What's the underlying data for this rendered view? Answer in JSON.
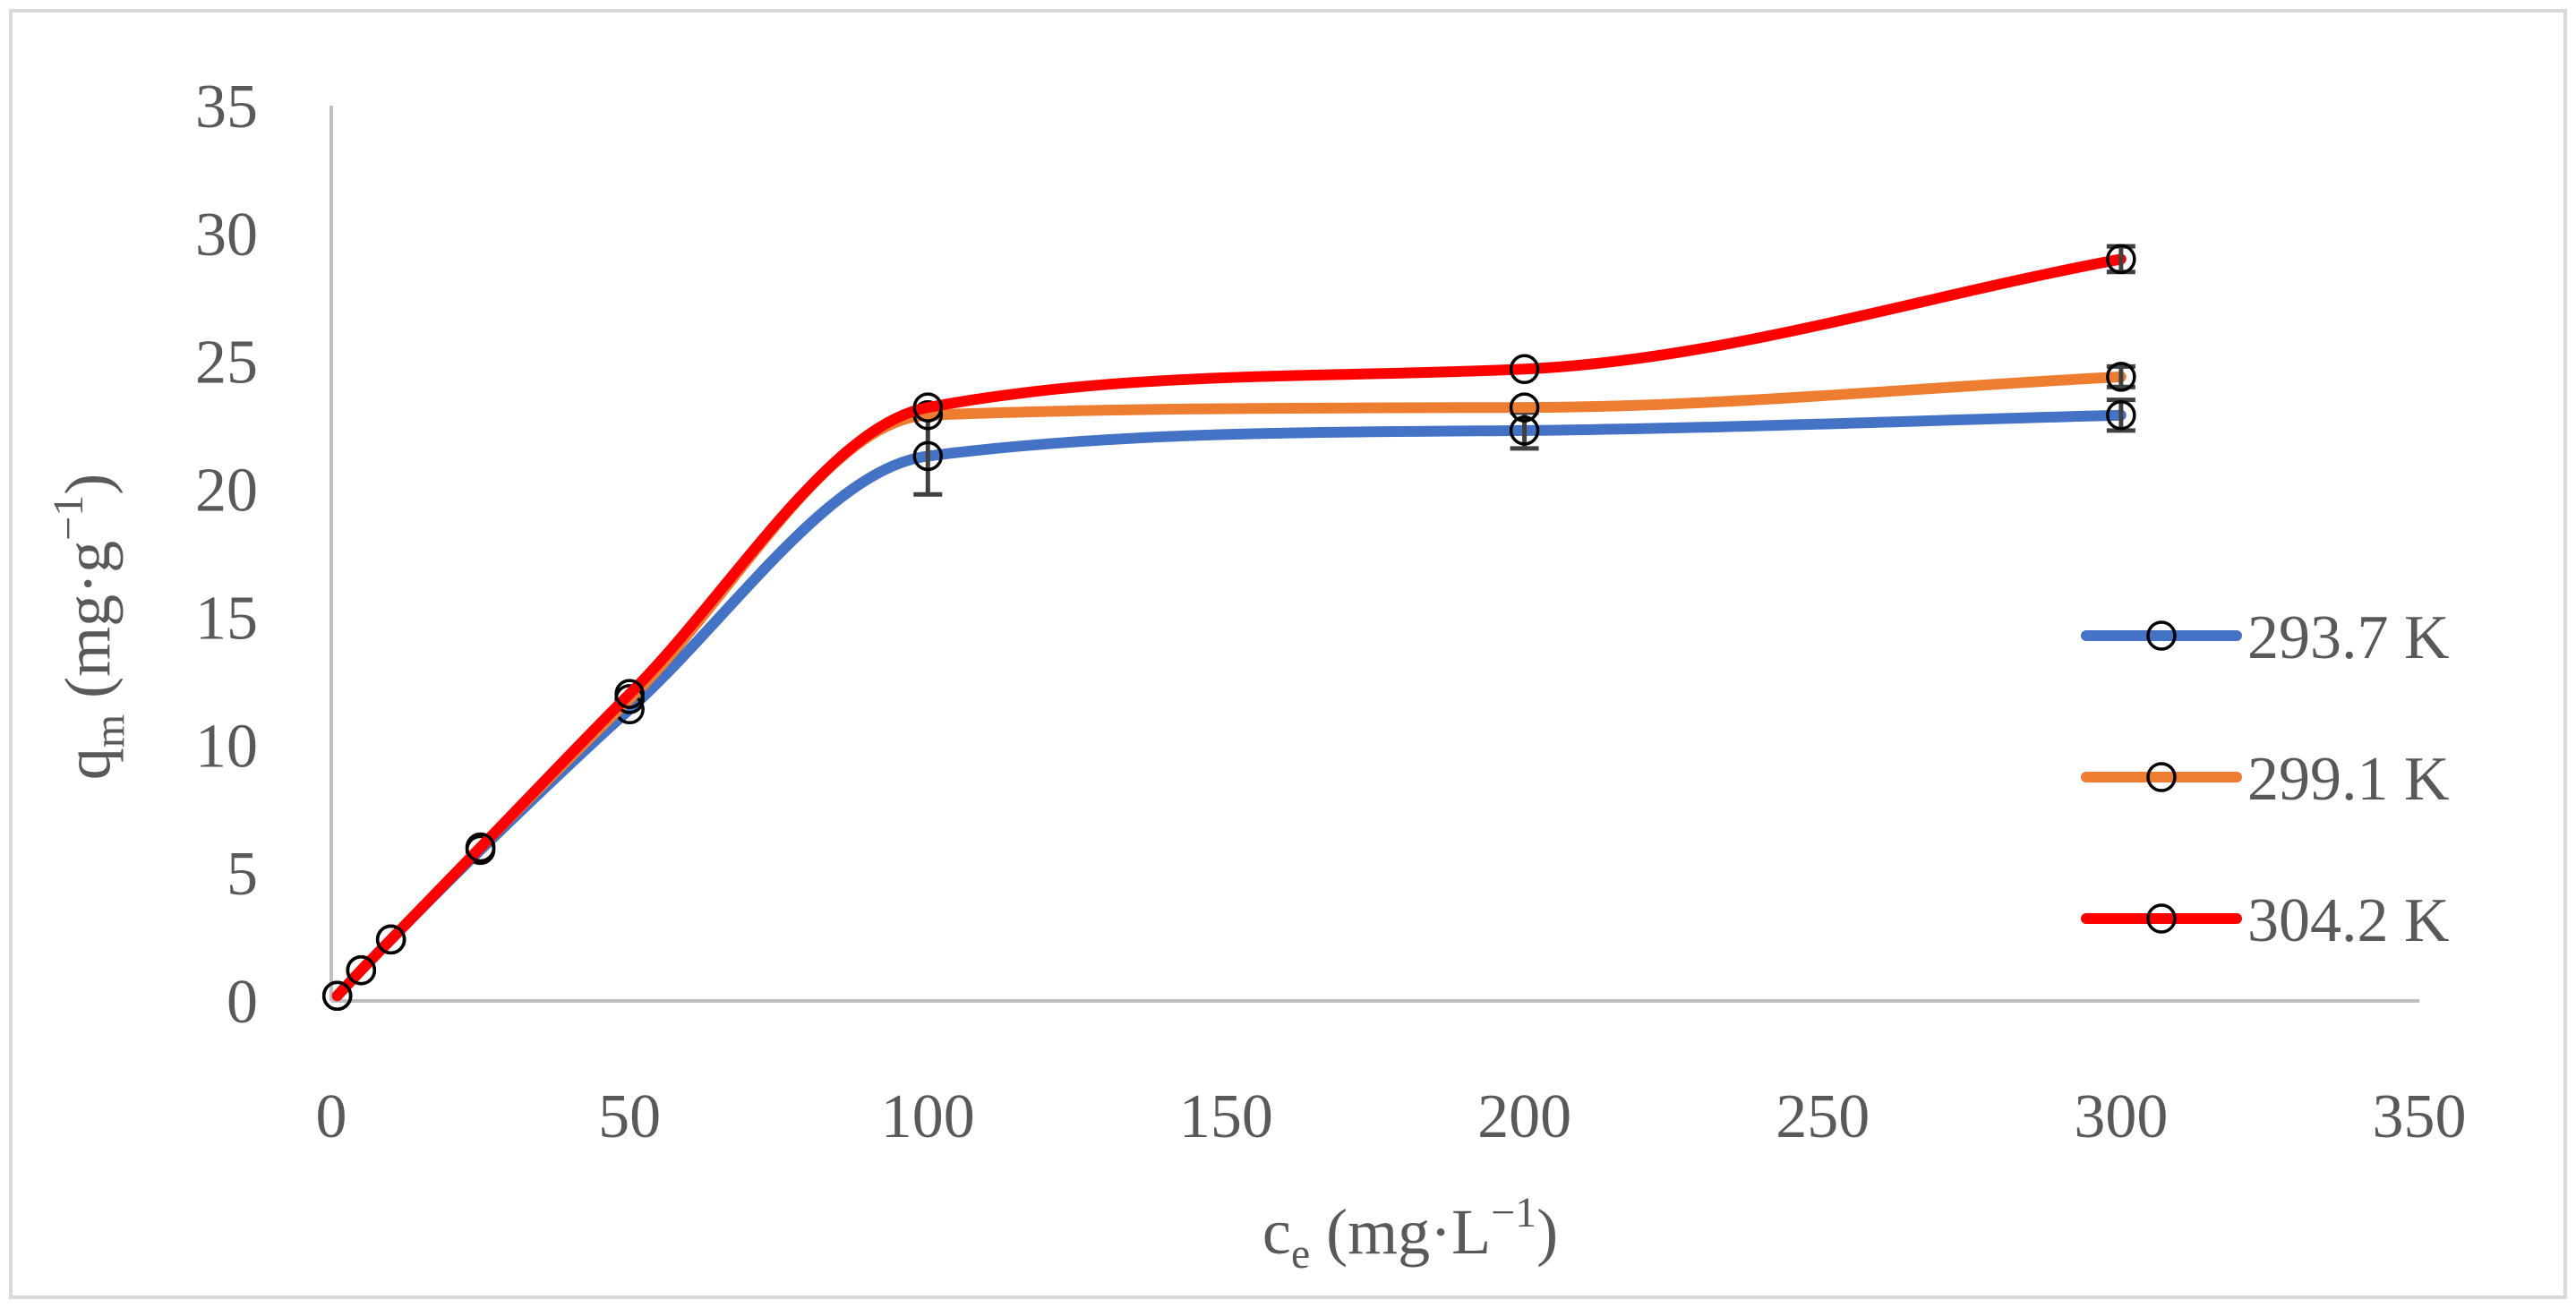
{
  "chart_data": {
    "type": "line",
    "title": "",
    "xlabel": {
      "base": "c",
      "sub": "e",
      "unit_prefix": " (mg·L",
      "sup": "−1",
      "unit_suffix": ")"
    },
    "ylabel": {
      "base": "q",
      "sub": "m",
      "unit_prefix": " (mg·g",
      "sup": "−1",
      "unit_suffix": ")"
    },
    "xlim": [
      0,
      350
    ],
    "ylim": [
      0,
      35
    ],
    "xticks": [
      "0",
      "50",
      "100",
      "150",
      "200",
      "250",
      "300",
      "350"
    ],
    "yticks": [
      "0",
      "5",
      "10",
      "15",
      "20",
      "25",
      "30",
      "35"
    ],
    "grid": false,
    "smooth": true,
    "marker": "open-circle",
    "legend_position": "right",
    "series": [
      {
        "name": "293.7 K",
        "color": "#4472C4",
        "x": [
          1,
          5,
          10,
          25,
          50,
          100,
          200,
          300
        ],
        "y": [
          0.2,
          1.2,
          2.4,
          5.9,
          11.4,
          21.3,
          22.3,
          22.9
        ],
        "err": [
          0,
          0,
          0,
          0,
          0,
          1.5,
          0.7,
          0.6
        ]
      },
      {
        "name": "299.1 K",
        "color": "#ED7D31",
        "x": [
          1,
          5,
          10,
          25,
          50,
          100,
          200,
          300
        ],
        "y": [
          0.2,
          1.2,
          2.4,
          6.0,
          11.8,
          22.9,
          23.2,
          24.4
        ],
        "err": [
          0,
          0,
          0,
          0,
          0,
          0,
          0,
          0.4
        ]
      },
      {
        "name": "304.2 K",
        "color": "#FF0000",
        "x": [
          1,
          5,
          10,
          25,
          50,
          100,
          200,
          300
        ],
        "y": [
          0.2,
          1.2,
          2.4,
          6.0,
          12.0,
          23.2,
          24.7,
          29.0
        ],
        "err": [
          0,
          0,
          0,
          0,
          0,
          0,
          0,
          0.5
        ]
      }
    ]
  }
}
